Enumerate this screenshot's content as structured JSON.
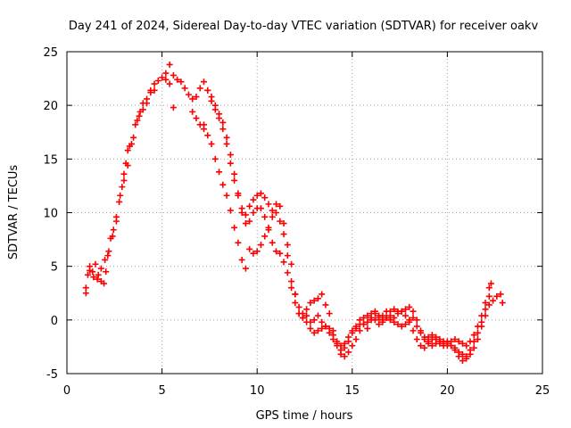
{
  "chart_data": {
    "type": "scatter",
    "title": "Day 241 of 2024, Sidereal Day-to-day VTEC variation (SDTVAR) for receiver oakv",
    "xlabel": "GPS time / hours",
    "ylabel": "SDTVAR / TECUs",
    "xlim": [
      0,
      25
    ],
    "ylim": [
      -5,
      25
    ],
    "x_ticks": [
      0,
      5,
      10,
      15,
      20,
      25
    ],
    "y_ticks": [
      -5,
      0,
      5,
      10,
      15,
      20,
      25
    ],
    "x_tick_labels": [
      "0",
      "5",
      "10",
      "15",
      "20",
      "25"
    ],
    "y_tick_labels": [
      "-5",
      "0",
      "5",
      "10",
      "15",
      "20",
      "25"
    ],
    "grid": true,
    "marker": "+",
    "color": "#ff0000",
    "series": [
      {
        "name": "trace-1",
        "points": [
          [
            1.0,
            2.5
          ],
          [
            1.1,
            4.2
          ],
          [
            1.2,
            5.0
          ],
          [
            1.35,
            4.5
          ],
          [
            1.5,
            5.2
          ],
          [
            1.65,
            4.2
          ],
          [
            1.8,
            3.6
          ],
          [
            1.95,
            3.4
          ],
          [
            2.05,
            4.5
          ],
          [
            2.15,
            6.0
          ],
          [
            2.3,
            7.6
          ],
          [
            2.45,
            8.4
          ],
          [
            2.6,
            9.6
          ],
          [
            2.75,
            11.0
          ],
          [
            2.9,
            12.4
          ],
          [
            3.0,
            13.6
          ],
          [
            3.1,
            14.6
          ],
          [
            3.2,
            15.8
          ],
          [
            3.3,
            16.2
          ],
          [
            3.5,
            17.0
          ],
          [
            3.7,
            18.6
          ],
          [
            3.85,
            19.4
          ],
          [
            4.0,
            20.2
          ],
          [
            4.2,
            20.6
          ],
          [
            4.4,
            21.4
          ],
          [
            4.6,
            22.0
          ],
          [
            4.8,
            22.3
          ],
          [
            5.0,
            22.6
          ],
          [
            5.2,
            23.0
          ],
          [
            5.4,
            23.8
          ],
          [
            5.6,
            22.8
          ],
          [
            5.8,
            22.4
          ],
          [
            6.0,
            22.2
          ],
          [
            6.2,
            21.6
          ],
          [
            6.4,
            21.0
          ],
          [
            6.6,
            20.6
          ],
          [
            6.8,
            20.8
          ],
          [
            7.0,
            21.6
          ],
          [
            7.2,
            22.2
          ],
          [
            7.4,
            21.4
          ],
          [
            7.6,
            20.4
          ],
          [
            7.8,
            19.6
          ],
          [
            8.0,
            18.8
          ],
          [
            8.2,
            17.8
          ],
          [
            8.4,
            16.4
          ],
          [
            8.6,
            14.6
          ],
          [
            8.8,
            13.0
          ],
          [
            9.0,
            11.6
          ],
          [
            9.2,
            10.4
          ],
          [
            9.4,
            9.8
          ],
          [
            9.6,
            10.6
          ],
          [
            9.8,
            11.2
          ],
          [
            10.0,
            11.6
          ],
          [
            10.2,
            11.8
          ],
          [
            10.4,
            11.4
          ],
          [
            10.6,
            10.8
          ],
          [
            10.8,
            10.2
          ],
          [
            11.0,
            10.0
          ],
          [
            11.2,
            9.2
          ],
          [
            11.4,
            8.0
          ],
          [
            11.6,
            6.0
          ],
          [
            11.8,
            3.6
          ],
          [
            12.0,
            2.4
          ],
          [
            12.2,
            1.2
          ],
          [
            12.4,
            0.6
          ],
          [
            12.6,
            1.0
          ],
          [
            12.8,
            1.6
          ],
          [
            13.0,
            1.8
          ],
          [
            13.2,
            2.0
          ],
          [
            13.4,
            2.4
          ],
          [
            13.6,
            1.4
          ],
          [
            13.8,
            0.6
          ],
          [
            14.0,
            -1.0
          ],
          [
            14.2,
            -2.0
          ],
          [
            14.4,
            -2.8
          ],
          [
            14.6,
            -2.6
          ],
          [
            14.8,
            -2.0
          ],
          [
            15.0,
            -1.2
          ],
          [
            15.2,
            -0.6
          ],
          [
            15.4,
            0.0
          ],
          [
            15.6,
            -0.4
          ],
          [
            15.8,
            -0.8
          ],
          [
            16.0,
            0.0
          ],
          [
            16.2,
            0.6
          ],
          [
            16.4,
            0.2
          ],
          [
            16.6,
            0.4
          ],
          [
            16.8,
            0.8
          ],
          [
            17.0,
            0.8
          ],
          [
            17.2,
            1.0
          ],
          [
            17.4,
            0.8
          ],
          [
            17.6,
            0.8
          ],
          [
            17.8,
            1.0
          ],
          [
            18.0,
            1.2
          ],
          [
            18.2,
            0.8
          ],
          [
            18.4,
            0.0
          ],
          [
            18.6,
            -1.0
          ],
          [
            18.8,
            -1.6
          ],
          [
            19.0,
            -2.0
          ],
          [
            19.2,
            -1.8
          ],
          [
            19.4,
            -1.6
          ],
          [
            19.6,
            -1.8
          ],
          [
            19.8,
            -2.0
          ],
          [
            20.0,
            -2.2
          ],
          [
            20.2,
            -2.4
          ],
          [
            20.4,
            -2.6
          ],
          [
            20.6,
            -3.0
          ],
          [
            20.8,
            -3.2
          ],
          [
            21.0,
            -3.4
          ],
          [
            21.2,
            -2.8
          ],
          [
            21.4,
            -2.0
          ],
          [
            21.6,
            -1.2
          ],
          [
            21.8,
            -0.2
          ],
          [
            22.0,
            1.0
          ],
          [
            22.2,
            2.2
          ],
          [
            22.4,
            1.8
          ],
          [
            22.6,
            2.2
          ],
          [
            22.8,
            2.4
          ],
          [
            22.9,
            1.6
          ]
        ]
      },
      {
        "name": "trace-2",
        "points": [
          [
            1.0,
            3.0
          ],
          [
            1.2,
            4.6
          ],
          [
            1.4,
            4.0
          ],
          [
            1.6,
            3.8
          ],
          [
            1.8,
            4.8
          ],
          [
            2.0,
            5.6
          ],
          [
            2.2,
            6.4
          ],
          [
            2.4,
            7.8
          ],
          [
            2.6,
            9.2
          ],
          [
            2.8,
            11.6
          ],
          [
            3.0,
            13.0
          ],
          [
            3.2,
            14.4
          ],
          [
            3.4,
            16.4
          ],
          [
            3.6,
            18.2
          ],
          [
            3.8,
            19.0
          ],
          [
            4.0,
            19.6
          ],
          [
            4.2,
            20.2
          ],
          [
            4.4,
            21.2
          ],
          [
            4.6,
            21.4
          ],
          [
            5.2,
            22.4
          ],
          [
            5.4,
            22.0
          ],
          [
            6.6,
            19.4
          ],
          [
            6.8,
            18.8
          ],
          [
            7.0,
            18.2
          ],
          [
            7.2,
            17.8
          ],
          [
            7.4,
            17.2
          ],
          [
            7.6,
            16.4
          ],
          [
            7.8,
            15.0
          ],
          [
            8.0,
            13.8
          ],
          [
            8.2,
            12.6
          ],
          [
            8.4,
            11.6
          ],
          [
            8.6,
            10.2
          ],
          [
            8.8,
            8.6
          ],
          [
            9.0,
            7.2
          ],
          [
            9.2,
            5.6
          ],
          [
            9.4,
            4.8
          ],
          [
            9.6,
            6.6
          ],
          [
            9.8,
            6.2
          ],
          [
            10.0,
            6.4
          ],
          [
            10.2,
            7.0
          ],
          [
            10.4,
            7.8
          ],
          [
            10.6,
            8.6
          ],
          [
            10.8,
            9.6
          ],
          [
            11.0,
            10.8
          ],
          [
            11.2,
            10.6
          ],
          [
            11.4,
            9.0
          ],
          [
            11.6,
            7.0
          ],
          [
            11.8,
            5.2
          ],
          [
            12.0,
            2.4
          ],
          [
            12.2,
            0.6
          ],
          [
            12.4,
            0.2
          ],
          [
            12.6,
            -0.2
          ],
          [
            12.8,
            -0.8
          ],
          [
            13.0,
            -1.2
          ],
          [
            13.2,
            -1.0
          ],
          [
            13.4,
            -0.8
          ],
          [
            13.6,
            -0.6
          ],
          [
            13.8,
            -0.8
          ],
          [
            14.0,
            -1.4
          ],
          [
            14.2,
            -2.2
          ],
          [
            14.4,
            -3.2
          ],
          [
            14.6,
            -3.4
          ],
          [
            14.8,
            -3.0
          ],
          [
            15.0,
            -2.4
          ],
          [
            15.2,
            -1.8
          ],
          [
            15.4,
            -1.0
          ],
          [
            15.6,
            -0.4
          ],
          [
            15.8,
            -0.2
          ],
          [
            16.0,
            0.2
          ],
          [
            16.2,
            0.0
          ],
          [
            16.4,
            -0.4
          ],
          [
            16.6,
            -0.2
          ],
          [
            16.8,
            0.2
          ],
          [
            17.0,
            0.4
          ],
          [
            17.2,
            0.2
          ],
          [
            17.4,
            0.6
          ],
          [
            17.6,
            0.8
          ],
          [
            17.8,
            0.4
          ],
          [
            18.0,
            -0.2
          ],
          [
            18.2,
            -1.0
          ],
          [
            18.4,
            -1.8
          ],
          [
            18.6,
            -2.4
          ],
          [
            18.8,
            -2.6
          ],
          [
            19.0,
            -2.2
          ],
          [
            19.2,
            -2.4
          ],
          [
            19.4,
            -2.2
          ],
          [
            19.6,
            -2.0
          ],
          [
            19.8,
            -2.2
          ],
          [
            20.0,
            -2.0
          ],
          [
            20.2,
            -2.4
          ],
          [
            20.4,
            -2.8
          ],
          [
            20.6,
            -3.4
          ],
          [
            20.8,
            -3.8
          ],
          [
            21.0,
            -3.6
          ],
          [
            21.2,
            -3.2
          ],
          [
            21.4,
            -2.6
          ],
          [
            21.6,
            -1.8
          ],
          [
            21.8,
            -0.6
          ],
          [
            22.0,
            0.4
          ],
          [
            22.2,
            1.4
          ]
        ]
      },
      {
        "name": "trace-3",
        "points": [
          [
            5.6,
            19.8
          ],
          [
            7.2,
            18.2
          ],
          [
            7.4,
            21.4
          ],
          [
            7.6,
            20.8
          ],
          [
            7.8,
            20.0
          ],
          [
            8.0,
            19.2
          ],
          [
            8.2,
            18.4
          ],
          [
            8.4,
            17.0
          ],
          [
            8.6,
            15.4
          ],
          [
            8.8,
            13.6
          ],
          [
            9.0,
            11.8
          ],
          [
            9.2,
            10.0
          ],
          [
            9.4,
            9.0
          ],
          [
            9.6,
            9.2
          ],
          [
            9.8,
            10.0
          ],
          [
            10.0,
            10.4
          ],
          [
            10.2,
            10.4
          ],
          [
            10.4,
            9.6
          ],
          [
            10.6,
            8.4
          ],
          [
            10.8,
            7.2
          ],
          [
            11.0,
            6.4
          ],
          [
            11.2,
            6.2
          ],
          [
            11.4,
            5.4
          ],
          [
            11.6,
            4.4
          ],
          [
            11.8,
            3.0
          ],
          [
            12.0,
            1.6
          ],
          [
            12.2,
            0.6
          ],
          [
            12.4,
            0.2
          ],
          [
            12.6,
            0.4
          ],
          [
            12.8,
            -0.2
          ],
          [
            13.0,
            0.0
          ],
          [
            13.2,
            0.4
          ],
          [
            13.4,
            -0.2
          ],
          [
            13.6,
            -0.6
          ],
          [
            13.8,
            -1.2
          ],
          [
            14.0,
            -1.8
          ],
          [
            14.2,
            -2.4
          ],
          [
            14.4,
            -2.4
          ],
          [
            14.6,
            -2.2
          ],
          [
            14.8,
            -1.6
          ],
          [
            15.0,
            -1.0
          ],
          [
            15.2,
            -0.8
          ],
          [
            15.4,
            -0.4
          ],
          [
            15.6,
            0.2
          ],
          [
            15.8,
            0.4
          ],
          [
            16.0,
            0.6
          ],
          [
            16.2,
            0.8
          ],
          [
            16.4,
            0.4
          ],
          [
            16.6,
            0.0
          ],
          [
            16.8,
            0.2
          ],
          [
            17.0,
            0.0
          ],
          [
            17.2,
            -0.2
          ],
          [
            17.4,
            -0.4
          ],
          [
            17.6,
            -0.6
          ],
          [
            17.8,
            -0.4
          ],
          [
            18.0,
            0.0
          ],
          [
            18.2,
            0.2
          ],
          [
            18.4,
            -0.6
          ],
          [
            18.6,
            -1.2
          ],
          [
            18.8,
            -1.8
          ],
          [
            19.0,
            -1.6
          ],
          [
            19.2,
            -1.4
          ],
          [
            19.4,
            -1.8
          ],
          [
            19.6,
            -2.2
          ],
          [
            19.8,
            -2.4
          ],
          [
            20.0,
            -2.4
          ],
          [
            20.2,
            -2.0
          ],
          [
            20.4,
            -1.8
          ],
          [
            20.6,
            -2.0
          ],
          [
            20.8,
            -2.2
          ],
          [
            21.0,
            -2.4
          ],
          [
            21.2,
            -2.0
          ],
          [
            21.4,
            -1.4
          ],
          [
            21.6,
            -0.6
          ],
          [
            21.8,
            0.4
          ],
          [
            22.0,
            1.6
          ],
          [
            22.2,
            3.0
          ],
          [
            22.3,
            3.4
          ]
        ]
      }
    ]
  }
}
